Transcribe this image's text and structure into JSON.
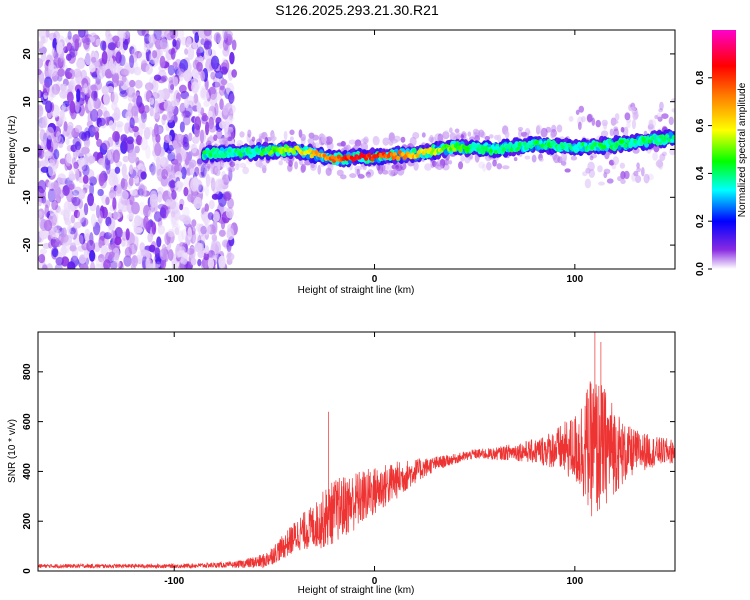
{
  "title": "S126.2025.293.21.30.R21",
  "chart_data": [
    {
      "type": "heatmap",
      "name": "spectrogram",
      "xlabel": "Height of straight line (km)",
      "ylabel": "Frequency (Hz)",
      "xlim": [
        -168,
        150
      ],
      "ylim": [
        -25,
        25
      ],
      "xticks": [
        -100,
        0,
        100
      ],
      "yticks": [
        -20,
        -10,
        0,
        10,
        20
      ],
      "xtick_labels": [
        "-100",
        "0",
        "100"
      ],
      "ytick_labels": [
        "-20",
        "-10",
        "0",
        "10",
        "20"
      ],
      "colorbar": {
        "label": "Normalized spectral amplitude",
        "range": [
          0,
          1
        ],
        "ticks": [
          0.0,
          0.2,
          0.4,
          0.6,
          0.8
        ],
        "tick_labels": [
          "0.0",
          "0.2",
          "0.4",
          "0.6",
          "0.8"
        ],
        "colormap": [
          "#ffffff",
          "#8a2be2",
          "#0000ff",
          "#00ffff",
          "#00ff00",
          "#ffff00",
          "#ff8000",
          "#ff0000",
          "#ff00cc"
        ]
      },
      "noise_region_x": [
        -168,
        -70
      ],
      "signal_band": {
        "x": [
          -85,
          -60,
          -40,
          -20,
          0,
          20,
          40,
          60,
          80,
          100,
          120,
          140,
          150
        ],
        "frequency": [
          -1.0,
          -0.5,
          0.0,
          -2.0,
          -1.5,
          -1.0,
          0.5,
          0.0,
          1.0,
          0.5,
          1.0,
          2.0,
          2.5
        ]
      }
    },
    {
      "type": "line",
      "name": "snr",
      "xlabel": "Height of straight line (km)",
      "ylabel": "SNR (10 * v/v)",
      "xlim": [
        -168,
        150
      ],
      "ylim": [
        0,
        960
      ],
      "xticks": [
        -100,
        0,
        100
      ],
      "yticks": [
        0,
        200,
        400,
        600,
        800
      ],
      "xtick_labels": [
        "-100",
        "0",
        "100"
      ],
      "ytick_labels": [
        "0",
        "200",
        "400",
        "600",
        "800"
      ],
      "color": "#ee3333",
      "envelope": {
        "x": [
          -168,
          -100,
          -70,
          -55,
          -45,
          -38,
          -30,
          -25,
          -20,
          -10,
          0,
          10,
          20,
          30,
          40,
          50,
          60,
          70,
          80,
          90,
          100,
          105,
          110,
          115,
          120,
          125,
          130,
          140,
          150
        ],
        "mean": [
          20,
          20,
          25,
          40,
          100,
          150,
          180,
          210,
          240,
          280,
          320,
          360,
          400,
          430,
          450,
          470,
          470,
          480,
          480,
          490,
          490,
          500,
          490,
          500,
          490,
          470,
          480,
          480,
          480
        ],
        "spread": [
          8,
          8,
          12,
          30,
          50,
          70,
          90,
          120,
          130,
          120,
          100,
          80,
          50,
          30,
          20,
          20,
          25,
          35,
          50,
          80,
          140,
          230,
          300,
          240,
          180,
          120,
          90,
          60,
          50
        ]
      },
      "spikes": [
        {
          "x": -23,
          "y": 640
        },
        {
          "x": 110,
          "y": 960
        },
        {
          "x": 113,
          "y": 920
        }
      ]
    }
  ]
}
